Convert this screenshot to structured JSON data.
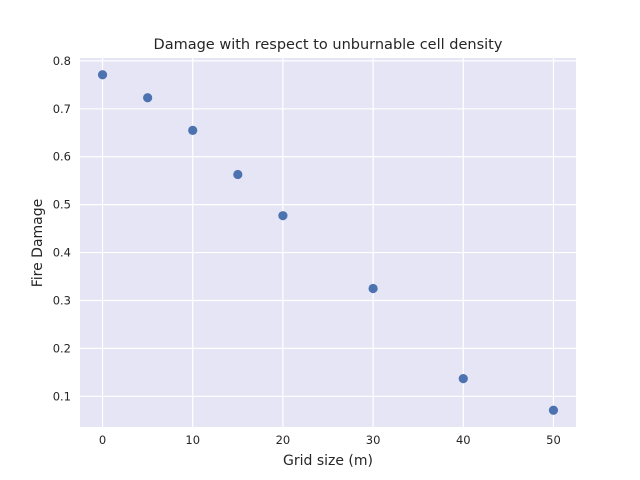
{
  "chart_data": {
    "type": "scatter",
    "title": "Damage with respect to unburnable cell density",
    "xlabel": "Grid size (m)",
    "ylabel": "Fire Damage",
    "x": [
      0,
      5,
      10,
      15,
      20,
      30,
      40,
      50
    ],
    "y": [
      0.771,
      0.723,
      0.655,
      0.563,
      0.477,
      0.325,
      0.137,
      0.071
    ],
    "xlim": [
      -2.5,
      52.5
    ],
    "ylim": [
      0.036,
      0.806
    ],
    "xticks": [
      0,
      10,
      20,
      30,
      40,
      50
    ],
    "xtick_labels": [
      "0",
      "10",
      "20",
      "30",
      "40",
      "50"
    ],
    "yticks": [
      0.1,
      0.2,
      0.3,
      0.4,
      0.5,
      0.6,
      0.7,
      0.8
    ],
    "ytick_labels": [
      "0.1",
      "0.2",
      "0.3",
      "0.4",
      "0.5",
      "0.6",
      "0.7",
      "0.8"
    ],
    "grid": true,
    "colors": {
      "plot_background": "#e5e5f5",
      "grid": "#ffffff",
      "marker": "#4c72b0",
      "text": "#262626"
    }
  }
}
